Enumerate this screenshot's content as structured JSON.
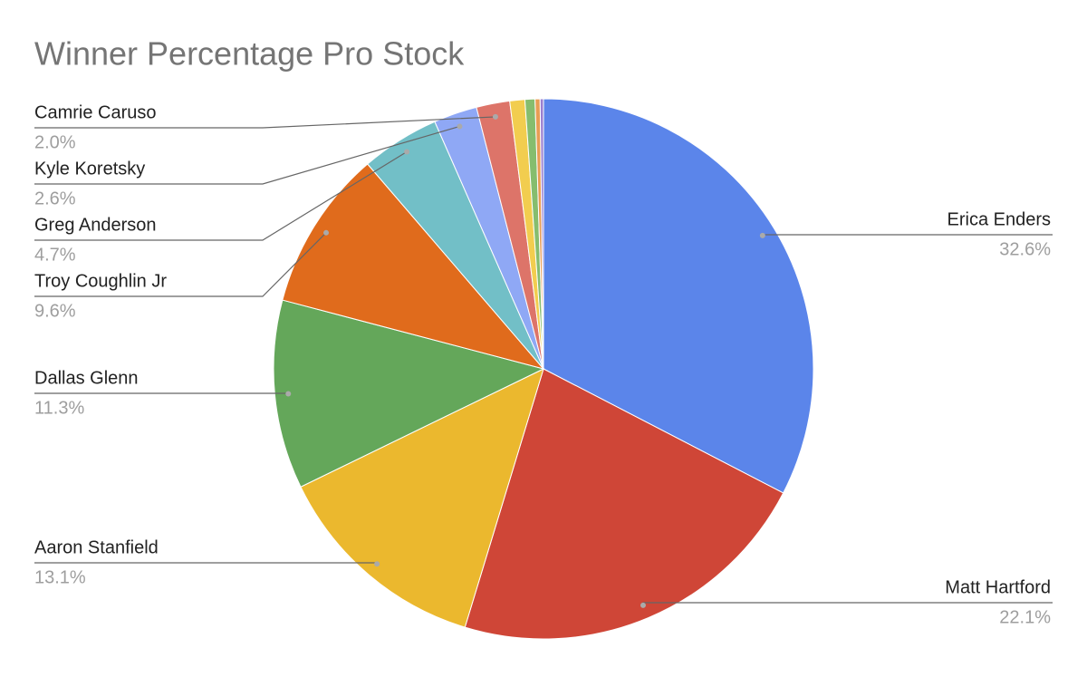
{
  "chart_data": {
    "type": "pie",
    "title": "Winner Percentage Pro Stock",
    "categories": [
      "Erica Enders",
      "Matt Hartford",
      "Aaron Stanfield",
      "Dallas Glenn",
      "Troy Coughlin Jr",
      "Greg Anderson",
      "Kyle Koretsky",
      "Camrie Caruso",
      null,
      null,
      null,
      null
    ],
    "values": [
      32.6,
      22.1,
      13.1,
      11.3,
      9.6,
      4.7,
      2.6,
      2.0,
      0.9,
      0.6,
      0.3,
      0.2
    ],
    "value_labels": [
      "32.6%",
      "22.1%",
      "13.1%",
      "11.3%",
      "9.6%",
      "4.7%",
      "2.6%",
      "2.0%",
      null,
      null,
      null,
      null
    ],
    "colors": [
      "#5b85ea",
      "#cf4637",
      "#ebb82e",
      "#64a75a",
      "#e06b1c",
      "#72bfc7",
      "#8fa8f5",
      "#dd7469",
      "#f2cd4f",
      "#86bd6e",
      "#e89d54",
      "#9a7fd0"
    ]
  }
}
